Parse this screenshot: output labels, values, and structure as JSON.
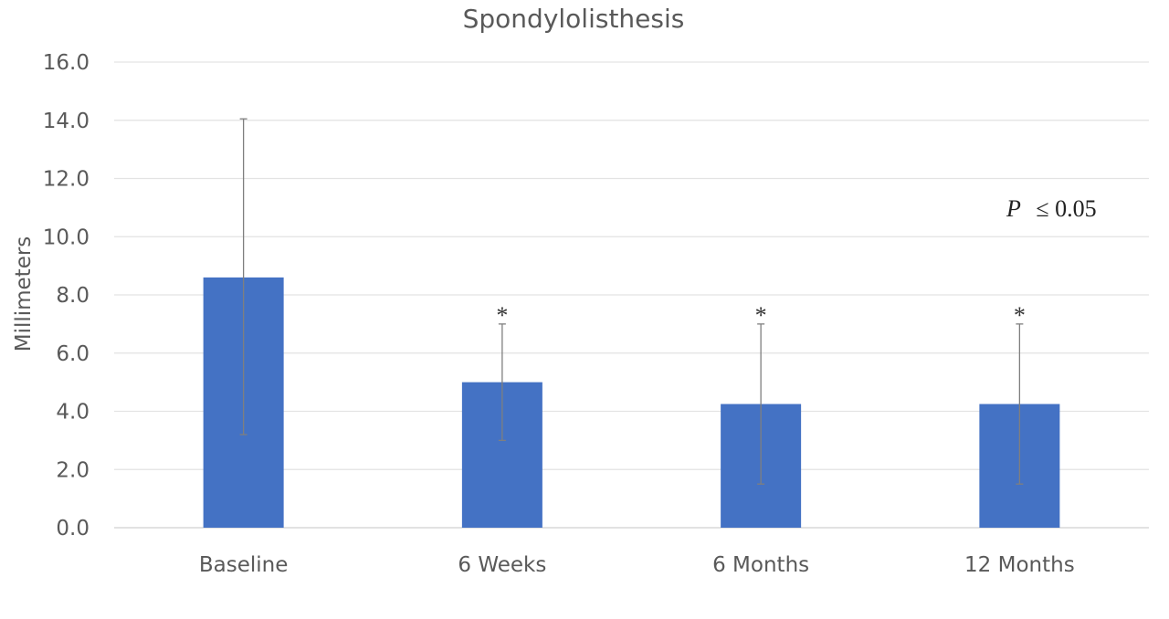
{
  "chart_data": {
    "type": "bar",
    "title": "Spondylolisthesis",
    "xlabel": "",
    "ylabel": "Millimeters",
    "categories": [
      "Baseline",
      "6 Weeks",
      "6 Months",
      "12 Months"
    ],
    "values": [
      8.6,
      5.0,
      4.25,
      4.25
    ],
    "error_bars": [
      {
        "low": 3.2,
        "high": 14.05
      },
      {
        "low": 3.0,
        "high": 7.0
      },
      {
        "low": 1.5,
        "high": 7.0
      },
      {
        "low": 1.5,
        "high": 7.0
      }
    ],
    "significance_markers": [
      "",
      "*",
      "*",
      "*"
    ],
    "ylim": [
      0,
      16
    ],
    "y_ticks": [
      "0.0",
      "2.0",
      "4.0",
      "6.0",
      "8.0",
      "10.0",
      "12.0",
      "14.0",
      "16.0"
    ],
    "grid": true,
    "bar_color": "#4472C4",
    "annotation": {
      "p_symbol": "P",
      "p_text": "≤ 0.05"
    }
  }
}
